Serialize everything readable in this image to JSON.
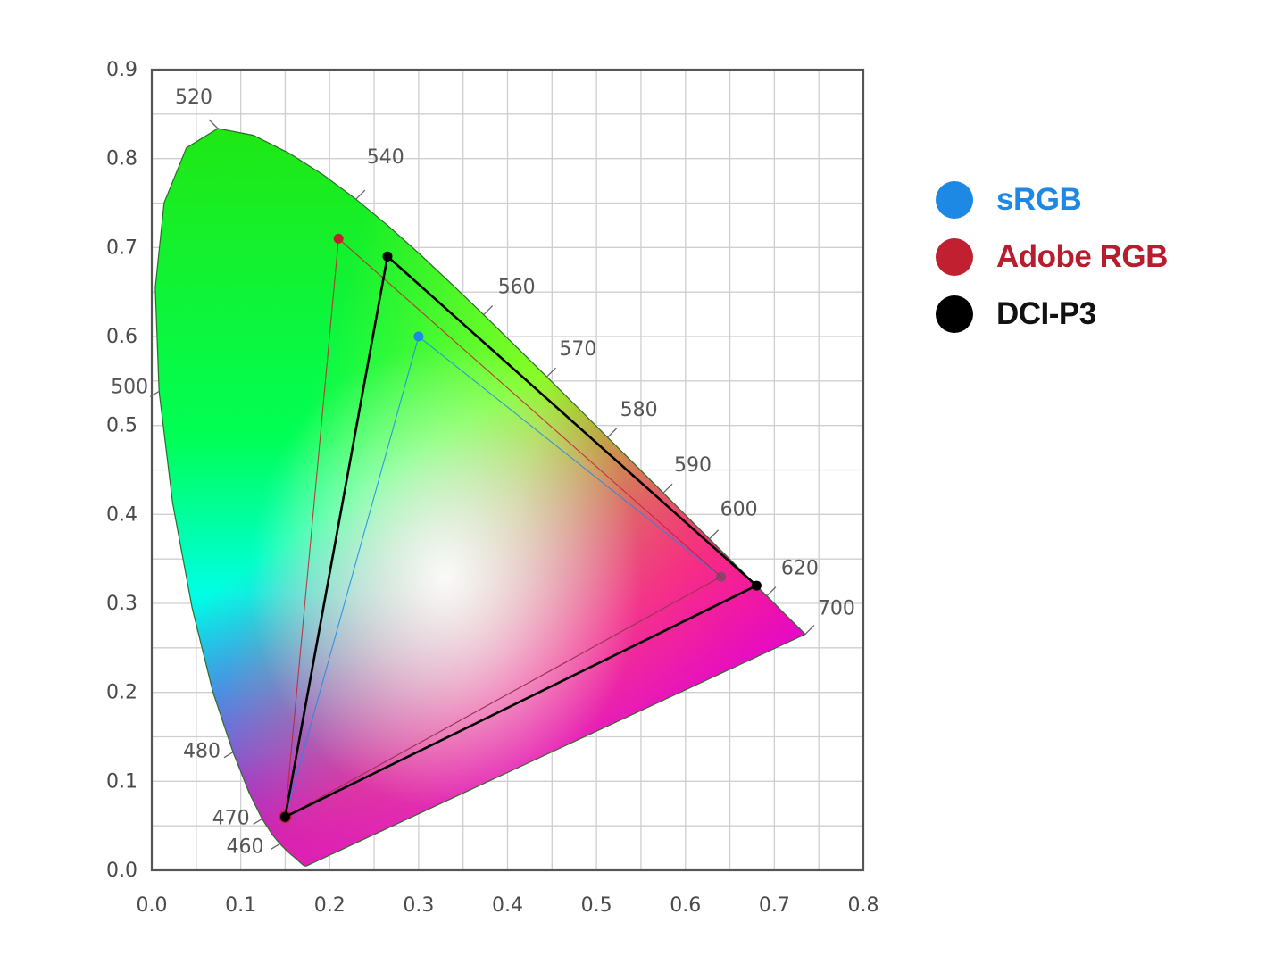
{
  "chart_data": {
    "type": "scatter",
    "title": "",
    "xlabel": "",
    "ylabel": "",
    "xlim": [
      0.0,
      0.8
    ],
    "ylim": [
      0.0,
      0.9
    ],
    "grid": true,
    "x_ticks": [
      "0.0",
      "0.1",
      "0.2",
      "0.3",
      "0.4",
      "0.5",
      "0.6",
      "0.7",
      "0.8"
    ],
    "y_ticks": [
      "0.0",
      "0.1",
      "0.2",
      "0.3",
      "0.4",
      "0.5",
      "0.6",
      "0.7",
      "0.8",
      "0.9"
    ],
    "spectral_locus": {
      "name": "CIE 1931 chromaticity diagram",
      "points": [
        [
          0.1741,
          0.005
        ],
        [
          0.173,
          0.0048
        ],
        [
          0.172,
          0.0048
        ],
        [
          0.1714,
          0.0051
        ],
        [
          0.1703,
          0.0058
        ],
        [
          0.1689,
          0.0069
        ],
        [
          0.1669,
          0.0086
        ],
        [
          0.1644,
          0.0109
        ],
        [
          0.1611,
          0.0138
        ],
        [
          0.1566,
          0.0177
        ],
        [
          0.151,
          0.0227
        ],
        [
          0.144,
          0.0297
        ],
        [
          0.1355,
          0.0399
        ],
        [
          0.1241,
          0.0578
        ],
        [
          0.1096,
          0.0868
        ],
        [
          0.0913,
          0.1327
        ],
        [
          0.0687,
          0.2007
        ],
        [
          0.0454,
          0.295
        ],
        [
          0.0235,
          0.4127
        ],
        [
          0.0082,
          0.5384
        ],
        [
          0.0039,
          0.6548
        ],
        [
          0.0139,
          0.7502
        ],
        [
          0.0389,
          0.812
        ],
        [
          0.0743,
          0.8338
        ],
        [
          0.1142,
          0.8262
        ],
        [
          0.1547,
          0.8059
        ],
        [
          0.1929,
          0.7816
        ],
        [
          0.2296,
          0.7543
        ],
        [
          0.2658,
          0.7243
        ],
        [
          0.3016,
          0.6923
        ],
        [
          0.3373,
          0.6589
        ],
        [
          0.3731,
          0.6245
        ],
        [
          0.4087,
          0.5896
        ],
        [
          0.4441,
          0.5547
        ],
        [
          0.4788,
          0.5202
        ],
        [
          0.5125,
          0.4866
        ],
        [
          0.5448,
          0.4544
        ],
        [
          0.5752,
          0.4242
        ],
        [
          0.6029,
          0.3965
        ],
        [
          0.627,
          0.3725
        ],
        [
          0.6482,
          0.3514
        ],
        [
          0.6658,
          0.334
        ],
        [
          0.6801,
          0.3197
        ],
        [
          0.6915,
          0.3083
        ],
        [
          0.7006,
          0.2993
        ],
        [
          0.7079,
          0.292
        ],
        [
          0.714,
          0.2859
        ],
        [
          0.719,
          0.2809
        ],
        [
          0.723,
          0.277
        ],
        [
          0.726,
          0.274
        ],
        [
          0.7283,
          0.2717
        ],
        [
          0.73,
          0.27
        ],
        [
          0.7311,
          0.2689
        ],
        [
          0.732,
          0.268
        ],
        [
          0.7334,
          0.2666
        ],
        [
          0.7347,
          0.2653
        ]
      ],
      "wavelength_labels": [
        {
          "label": "520",
          "x": 0.0743,
          "y": 0.8338
        },
        {
          "label": "540",
          "x": 0.2296,
          "y": 0.7543
        },
        {
          "label": "560",
          "x": 0.3731,
          "y": 0.6245
        },
        {
          "label": "570",
          "x": 0.4441,
          "y": 0.5547
        },
        {
          "label": "580",
          "x": 0.5125,
          "y": 0.4866
        },
        {
          "label": "590",
          "x": 0.5752,
          "y": 0.4242
        },
        {
          "label": "600",
          "x": 0.627,
          "y": 0.3725
        },
        {
          "label": "620",
          "x": 0.6915,
          "y": 0.3083
        },
        {
          "label": "700",
          "x": 0.7347,
          "y": 0.2653
        },
        {
          "label": "500",
          "x": 0.0082,
          "y": 0.5384
        },
        {
          "label": "480",
          "x": 0.0913,
          "y": 0.1327
        },
        {
          "label": "470",
          "x": 0.1241,
          "y": 0.0578
        },
        {
          "label": "460",
          "x": 0.144,
          "y": 0.0297
        }
      ]
    },
    "series": [
      {
        "name": "sRGB",
        "color": "#1e88e5",
        "points": [
          [
            0.64,
            0.33
          ],
          [
            0.3,
            0.6
          ],
          [
            0.15,
            0.06
          ]
        ]
      },
      {
        "name": "Adobe RGB",
        "color": "#c0202f",
        "points": [
          [
            0.64,
            0.33
          ],
          [
            0.21,
            0.71
          ],
          [
            0.15,
            0.06
          ]
        ]
      },
      {
        "name": "DCI-P3",
        "color": "#000000",
        "points": [
          [
            0.68,
            0.32
          ],
          [
            0.265,
            0.69
          ],
          [
            0.15,
            0.06
          ]
        ]
      }
    ],
    "legend_position": "right"
  },
  "legend": [
    {
      "label": "sRGB",
      "color": "#1e88e5"
    },
    {
      "label": "Adobe RGB",
      "color": "#c0202f"
    },
    {
      "label": "DCI-P3",
      "color": "#000000"
    }
  ]
}
